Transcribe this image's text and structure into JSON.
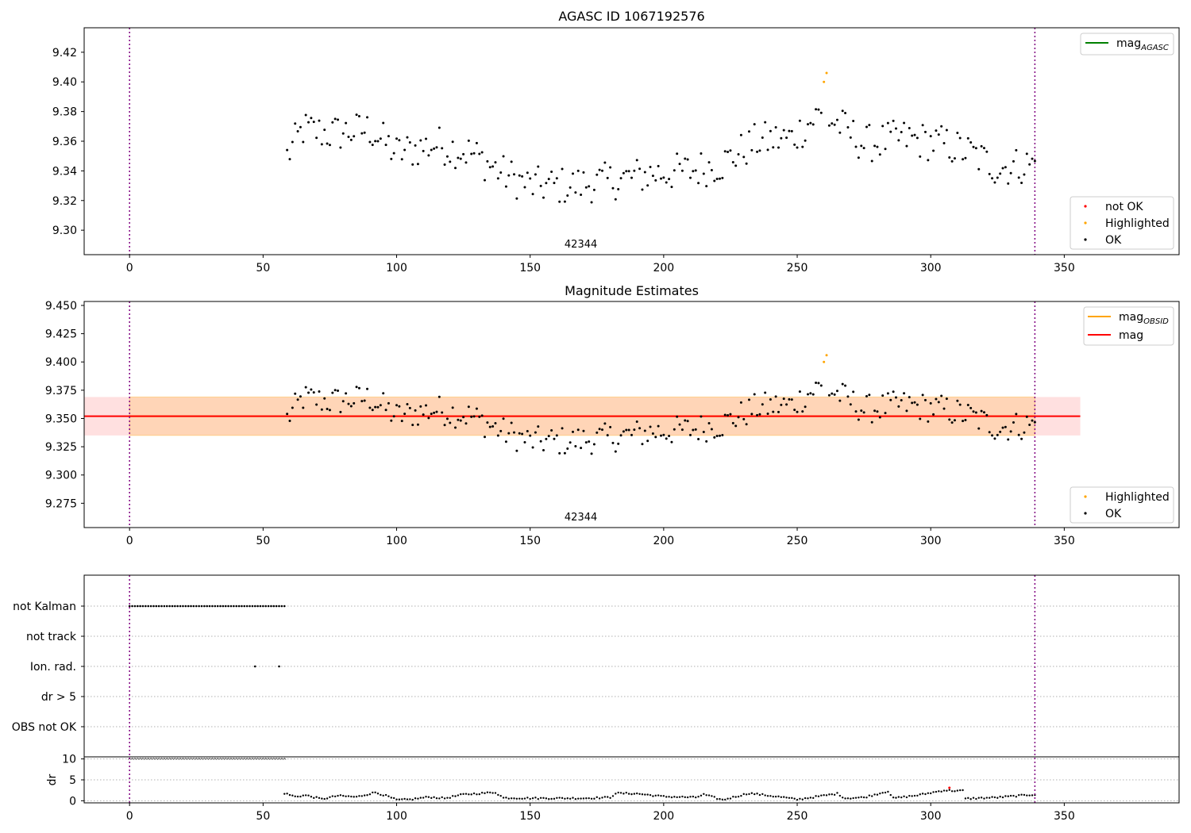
{
  "chart_data": [
    {
      "type": "scatter",
      "title": "AGASC ID 1067192576",
      "xlabel": "",
      "ylabel": "",
      "xlim": [
        -17,
        393
      ],
      "ylim": [
        9.2835,
        9.4365
      ],
      "xticks": [
        0,
        50,
        100,
        150,
        200,
        250,
        300,
        350
      ],
      "yticks": [
        9.3,
        9.32,
        9.34,
        9.36,
        9.38,
        9.4,
        9.42
      ],
      "ytick_labels": [
        "9.30",
        "9.32",
        "9.34",
        "9.36",
        "9.38",
        "9.40",
        "9.42"
      ],
      "obsid_label": "42344",
      "vlines": [
        0,
        339
      ],
      "legend_lines": [
        {
          "label": "mag",
          "sub": "AGASC",
          "color": "#008000"
        }
      ],
      "legend_points": [
        {
          "label": "not OK",
          "color": "#ff0000"
        },
        {
          "label": "Highlighted",
          "color": "#ffa500"
        },
        {
          "label": "OK",
          "color": "#000000"
        }
      ],
      "highlighted": [
        [
          260,
          9.4
        ],
        [
          261,
          9.406
        ]
      ]
    },
    {
      "type": "scatter",
      "title": "Magnitude Estimates",
      "xlabel": "",
      "ylabel": "",
      "xlim": [
        -17,
        393
      ],
      "ylim": [
        9.2535,
        9.4535
      ],
      "xticks": [
        0,
        50,
        100,
        150,
        200,
        250,
        300,
        350
      ],
      "yticks": [
        9.275,
        9.3,
        9.325,
        9.35,
        9.375,
        9.4,
        9.425,
        9.45
      ],
      "ytick_labels": [
        "9.275",
        "9.300",
        "9.325",
        "9.350",
        "9.375",
        "9.400",
        "9.425",
        "9.450"
      ],
      "obsid_label": "42344",
      "vlines": [
        0,
        339
      ],
      "mag_line": 9.352,
      "mag_band": [
        9.335,
        9.369
      ],
      "obsid_band_x": [
        0,
        339
      ],
      "full_band_x": [
        -17,
        356
      ],
      "legend_lines": [
        {
          "label": "mag",
          "sub": "OBSID",
          "color": "#ffa500"
        },
        {
          "label": "mag",
          "sub": "",
          "color": "#ff0000"
        }
      ],
      "legend_points": [
        {
          "label": "Highlighted",
          "color": "#ffa500"
        },
        {
          "label": "OK",
          "color": "#000000"
        }
      ],
      "highlighted": [
        [
          260,
          9.4
        ],
        [
          261,
          9.406
        ]
      ]
    },
    {
      "type": "scatter",
      "title": "",
      "xlabel": "",
      "xlim": [
        -17,
        393
      ],
      "flag_rows": [
        "not Kalman",
        "not track",
        "Ion. rad.",
        "dr > 5",
        "OBS not OK"
      ],
      "flag_points": {
        "not Kalman": {
          "x_range": [
            0,
            58
          ],
          "step": 1
        },
        "Ion. rad.": {
          "x": [
            47,
            56
          ]
        }
      },
      "dr_ylabel": "dr",
      "dr_ylim": [
        -0.5,
        10.5
      ],
      "dr_yticks": [
        0,
        5,
        10
      ],
      "dr_ytick_labels": [
        "0",
        "5",
        "10"
      ],
      "dr_capped": {
        "x_range": [
          0,
          58
        ],
        "value": 9.7,
        "color": "#ff0000"
      },
      "dr_red_point": [
        307,
        3.1
      ],
      "xticks": [
        0,
        50,
        100,
        150,
        200,
        250,
        300,
        350
      ],
      "vlines": [
        0,
        339
      ]
    }
  ]
}
